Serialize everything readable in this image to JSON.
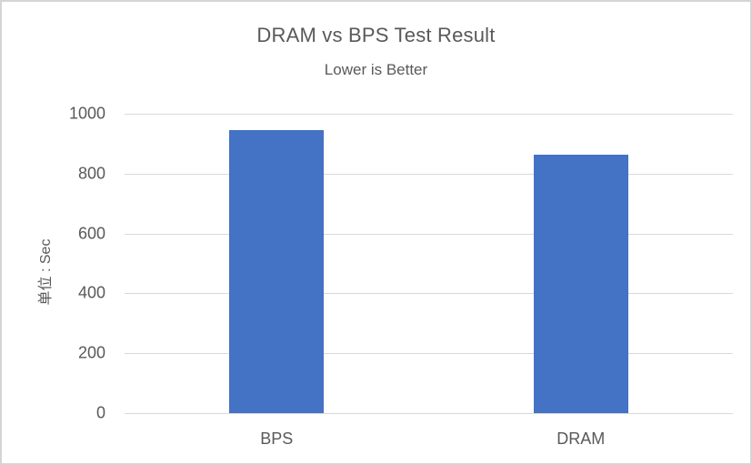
{
  "chart_data": {
    "type": "bar",
    "title": "DRAM vs BPS Test Result",
    "subtitle": "Lower is Better",
    "ylabel": "单位 : Sec",
    "xlabel": "",
    "categories": [
      "BPS",
      "DRAM"
    ],
    "values": [
      945,
      862
    ],
    "ylim": [
      0,
      1000
    ],
    "yticks": [
      0,
      200,
      400,
      600,
      800,
      1000
    ],
    "grid": "horizontal",
    "legend_position": "none",
    "bar_color": "#4472C4",
    "gridline_color": "#D9D9D9",
    "axis_line_color": "#D9D9D9",
    "text_color": "#595959",
    "border_color": "#D5D5D5",
    "background_color": "#FFFFFF"
  }
}
